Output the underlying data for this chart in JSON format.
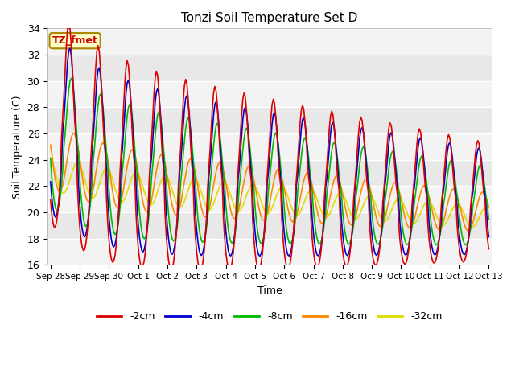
{
  "title": "Tonzi Soil Temperature Set D",
  "xlabel": "Time",
  "ylabel": "Soil Temperature (C)",
  "ylim": [
    16,
    34
  ],
  "annotation_text": "TZ_fmet",
  "annotation_color": "#cc0000",
  "annotation_bg": "#ffffcc",
  "annotation_border": "#aa8800",
  "series_colors": {
    "-2cm": "#dd0000",
    "-4cm": "#0000cc",
    "-8cm": "#00bb00",
    "-16cm": "#ff8800",
    "-32cm": "#dddd00"
  },
  "x_tick_labels": [
    "Sep 28",
    "Sep 29",
    "Sep 30",
    "Oct 1",
    "Oct 2",
    "Oct 3",
    "Oct 4",
    "Oct 5",
    "Oct 6",
    "Oct 7",
    "Oct 8",
    "Oct 9",
    "Oct 10",
    "Oct 11",
    "Oct 12",
    "Oct 13"
  ],
  "x_tick_positions": [
    0,
    1,
    2,
    3,
    4,
    5,
    6,
    7,
    8,
    9,
    10,
    11,
    12,
    13,
    14,
    15
  ],
  "yticks": [
    16,
    18,
    20,
    22,
    24,
    26,
    28,
    30,
    32,
    34
  ]
}
